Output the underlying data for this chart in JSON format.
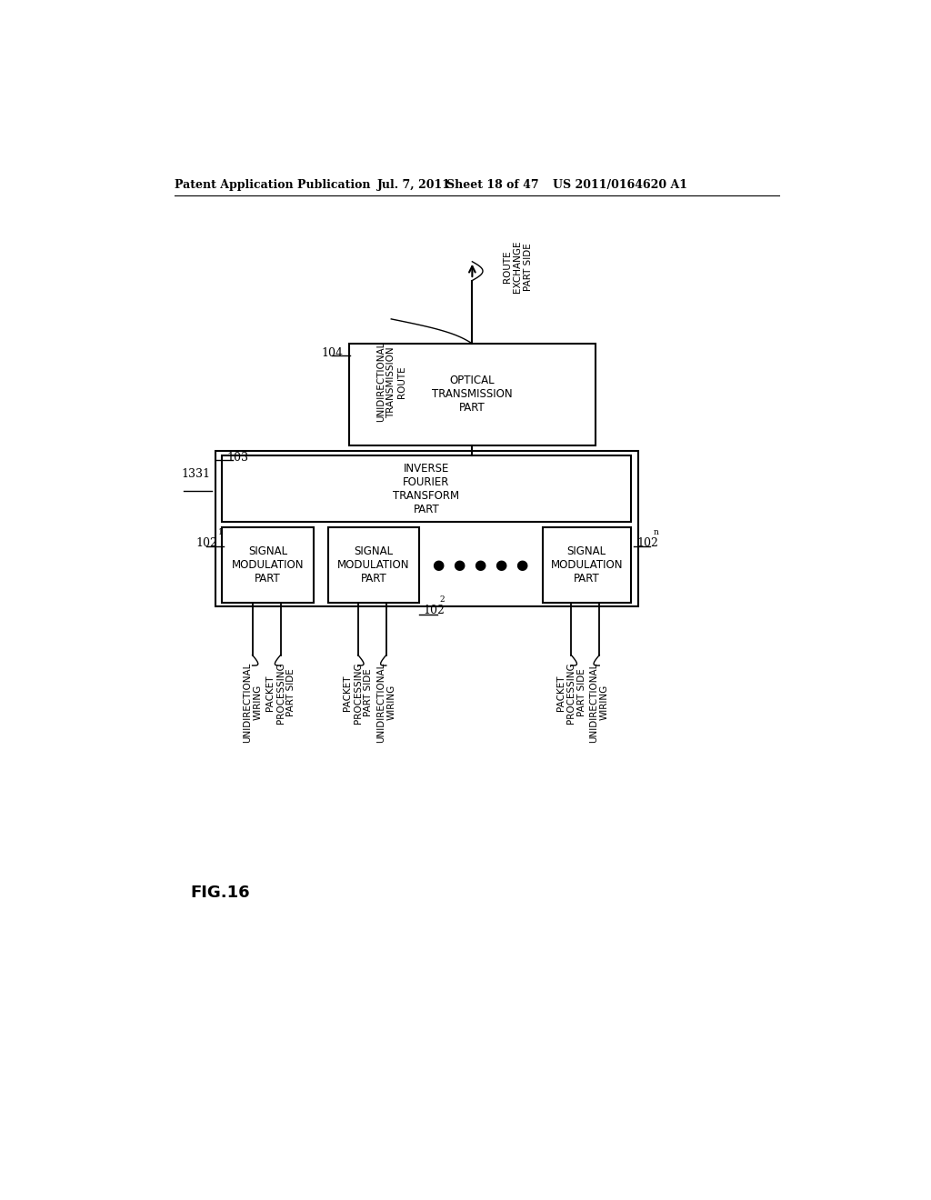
{
  "bg_color": "#ffffff",
  "header_left": "Patent Application Publication",
  "header_date": "Jul. 7, 2011",
  "header_sheet": "Sheet 18 of 47",
  "header_right": "US 2011/0164620 A1",
  "fig_label": "FIG.16",
  "label_1331": "1331",
  "label_103": "103",
  "label_104": "104",
  "label_102_1": "102",
  "label_102_1_sub": "1",
  "label_102_2": "102",
  "label_102_2_sub": "2",
  "label_102_n": "102",
  "label_102_n_sub": "n",
  "text_optical": "OPTICAL\nTRANSMISSION\nPART",
  "text_inverse": "INVERSE\nFOURIER\nTRANSFORM\nPART",
  "text_signal": "SIGNAL\nMODULATION\nPART",
  "text_unidirectional_route": "UNIDIRECTIONAL\nTRANSMISSION\nROUTE",
  "text_route_exchange": "ROUTE\nEXCHANGE\nPART SIDE",
  "text_uni_wire": "UNIDIRECTIONAL\nWIRING",
  "text_packet": "PACKET\nPROCESSING\nPART SIDE"
}
